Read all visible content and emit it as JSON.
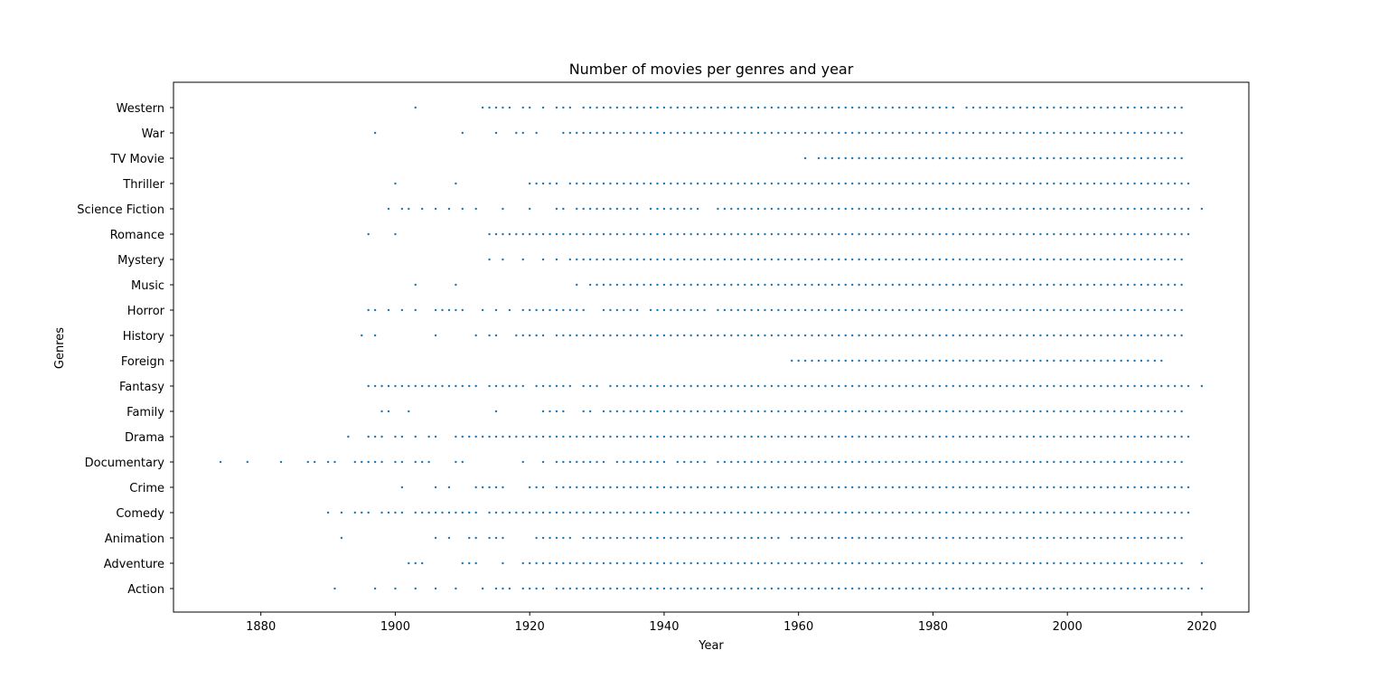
{
  "chart_data": {
    "type": "scatter",
    "title": "Number of movies per genres and year",
    "xlabel": "Year",
    "ylabel": "Genres",
    "xlim": [
      1867,
      2027
    ],
    "x_ticks": [
      1880,
      1900,
      1920,
      1940,
      1960,
      1980,
      2000,
      2020
    ],
    "grid": false,
    "marker_color": "#1f77b4",
    "categories": [
      "Action",
      "Adventure",
      "Animation",
      "Comedy",
      "Crime",
      "Documentary",
      "Drama",
      "Family",
      "Fantasy",
      "Foreign",
      "History",
      "Horror",
      "Music",
      "Mystery",
      "Romance",
      "Science Fiction",
      "Thriller",
      "TV Movie",
      "War",
      "Western"
    ],
    "series": [
      {
        "category": "Western",
        "ranges": [
          [
            1903,
            1903
          ],
          [
            1913,
            1917
          ],
          [
            1919,
            1920
          ],
          [
            1922,
            1922
          ],
          [
            1924,
            1926
          ],
          [
            1928,
            1983
          ],
          [
            1985,
            2017
          ]
        ]
      },
      {
        "category": "War",
        "ranges": [
          [
            1897,
            1897
          ],
          [
            1910,
            1910
          ],
          [
            1915,
            1915
          ],
          [
            1918,
            1919
          ],
          [
            1921,
            1921
          ],
          [
            1925,
            2017
          ]
        ]
      },
      {
        "category": "TV Movie",
        "ranges": [
          [
            1961,
            1961
          ],
          [
            1963,
            2017
          ]
        ]
      },
      {
        "category": "Thriller",
        "ranges": [
          [
            1900,
            1900
          ],
          [
            1909,
            1909
          ],
          [
            1920,
            1924
          ],
          [
            1926,
            2018
          ]
        ]
      },
      {
        "category": "Science Fiction",
        "ranges": [
          [
            1899,
            1899
          ],
          [
            1901,
            1902
          ],
          [
            1904,
            1904
          ],
          [
            1906,
            1906
          ],
          [
            1908,
            1908
          ],
          [
            1910,
            1910
          ],
          [
            1912,
            1912
          ],
          [
            1916,
            1916
          ],
          [
            1920,
            1920
          ],
          [
            1924,
            1925
          ],
          [
            1927,
            1936
          ],
          [
            1938,
            1945
          ],
          [
            1948,
            2018
          ],
          [
            2020,
            2020
          ]
        ]
      },
      {
        "category": "Romance",
        "ranges": [
          [
            1896,
            1896
          ],
          [
            1900,
            1900
          ],
          [
            1914,
            2018
          ]
        ]
      },
      {
        "category": "Mystery",
        "ranges": [
          [
            1914,
            1914
          ],
          [
            1916,
            1916
          ],
          [
            1919,
            1919
          ],
          [
            1922,
            1922
          ],
          [
            1924,
            1924
          ],
          [
            1926,
            2017
          ]
        ]
      },
      {
        "category": "Music",
        "ranges": [
          [
            1903,
            1903
          ],
          [
            1909,
            1909
          ],
          [
            1927,
            1927
          ],
          [
            1929,
            2017
          ]
        ]
      },
      {
        "category": "Horror",
        "ranges": [
          [
            1896,
            1897
          ],
          [
            1899,
            1899
          ],
          [
            1901,
            1901
          ],
          [
            1903,
            1903
          ],
          [
            1906,
            1910
          ],
          [
            1913,
            1913
          ],
          [
            1915,
            1915
          ],
          [
            1917,
            1917
          ],
          [
            1919,
            1928
          ],
          [
            1931,
            1936
          ],
          [
            1938,
            1946
          ],
          [
            1948,
            2017
          ]
        ]
      },
      {
        "category": "History",
        "ranges": [
          [
            1895,
            1895
          ],
          [
            1897,
            1897
          ],
          [
            1906,
            1906
          ],
          [
            1912,
            1912
          ],
          [
            1914,
            1915
          ],
          [
            1918,
            1922
          ],
          [
            1924,
            2017
          ]
        ]
      },
      {
        "category": "Foreign",
        "ranges": [
          [
            1959,
            2014
          ]
        ]
      },
      {
        "category": "Fantasy",
        "ranges": [
          [
            1896,
            1912
          ],
          [
            1914,
            1919
          ],
          [
            1921,
            1926
          ],
          [
            1928,
            1930
          ],
          [
            1932,
            2018
          ],
          [
            2020,
            2020
          ]
        ]
      },
      {
        "category": "Family",
        "ranges": [
          [
            1898,
            1899
          ],
          [
            1902,
            1902
          ],
          [
            1915,
            1915
          ],
          [
            1922,
            1925
          ],
          [
            1928,
            1929
          ],
          [
            1931,
            2017
          ]
        ]
      },
      {
        "category": "Drama",
        "ranges": [
          [
            1893,
            1893
          ],
          [
            1896,
            1898
          ],
          [
            1900,
            1901
          ],
          [
            1903,
            1903
          ],
          [
            1905,
            1906
          ],
          [
            1909,
            2018
          ]
        ]
      },
      {
        "category": "Documentary",
        "ranges": [
          [
            1874,
            1874
          ],
          [
            1878,
            1878
          ],
          [
            1883,
            1883
          ],
          [
            1887,
            1888
          ],
          [
            1890,
            1891
          ],
          [
            1894,
            1898
          ],
          [
            1900,
            1901
          ],
          [
            1903,
            1905
          ],
          [
            1909,
            1910
          ],
          [
            1919,
            1919
          ],
          [
            1922,
            1922
          ],
          [
            1924,
            1931
          ],
          [
            1933,
            1940
          ],
          [
            1942,
            1946
          ],
          [
            1948,
            2017
          ]
        ]
      },
      {
        "category": "Crime",
        "ranges": [
          [
            1901,
            1901
          ],
          [
            1906,
            1906
          ],
          [
            1908,
            1908
          ],
          [
            1912,
            1916
          ],
          [
            1920,
            1922
          ],
          [
            1924,
            2018
          ]
        ]
      },
      {
        "category": "Comedy",
        "ranges": [
          [
            1890,
            1890
          ],
          [
            1892,
            1892
          ],
          [
            1894,
            1896
          ],
          [
            1898,
            1901
          ],
          [
            1903,
            1912
          ],
          [
            1914,
            2018
          ]
        ]
      },
      {
        "category": "Animation",
        "ranges": [
          [
            1892,
            1892
          ],
          [
            1906,
            1906
          ],
          [
            1908,
            1908
          ],
          [
            1911,
            1912
          ],
          [
            1914,
            1916
          ],
          [
            1921,
            1926
          ],
          [
            1928,
            1957
          ],
          [
            1959,
            2017
          ]
        ]
      },
      {
        "category": "Adventure",
        "ranges": [
          [
            1902,
            1904
          ],
          [
            1910,
            1912
          ],
          [
            1916,
            1916
          ],
          [
            1919,
            2017
          ],
          [
            2020,
            2020
          ]
        ]
      },
      {
        "category": "Action",
        "ranges": [
          [
            1891,
            1891
          ],
          [
            1897,
            1897
          ],
          [
            1900,
            1900
          ],
          [
            1903,
            1903
          ],
          [
            1906,
            1906
          ],
          [
            1909,
            1909
          ],
          [
            1913,
            1913
          ],
          [
            1915,
            1917
          ],
          [
            1919,
            1922
          ],
          [
            1924,
            2018
          ],
          [
            2020,
            2020
          ]
        ]
      }
    ]
  }
}
